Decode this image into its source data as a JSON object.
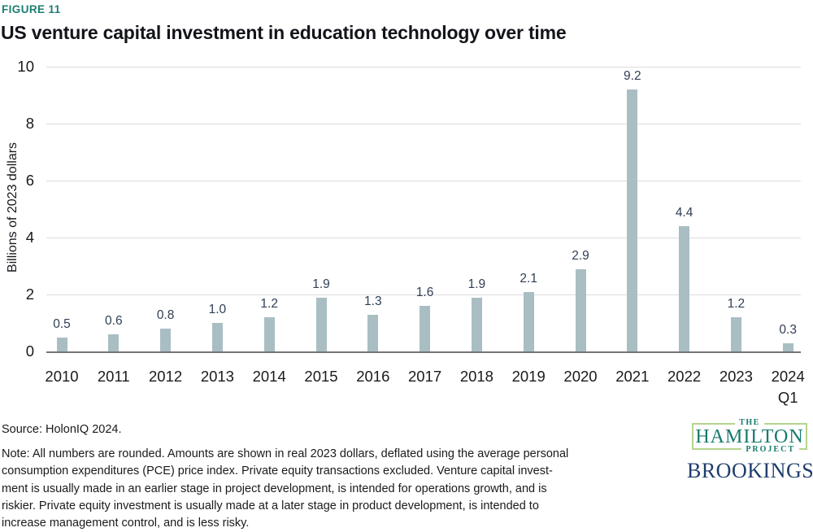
{
  "figure_label": "FIGURE 11",
  "title": "US venture capital investment in education technology over time",
  "chart_data": {
    "type": "bar",
    "categories": [
      "2010",
      "2011",
      "2012",
      "2013",
      "2014",
      "2015",
      "2016",
      "2017",
      "2018",
      "2019",
      "2020",
      "2021",
      "2022",
      "2023",
      "2024 Q1"
    ],
    "values": [
      0.5,
      0.6,
      0.8,
      1.0,
      1.2,
      1.9,
      1.3,
      1.6,
      1.9,
      2.1,
      2.9,
      9.2,
      4.4,
      1.2,
      0.3
    ],
    "title": "US venture capital investment in education technology over time",
    "xlabel": "",
    "ylabel": "Billions of 2023 dollars",
    "yticks": [
      0,
      2,
      4,
      6,
      8,
      10
    ],
    "ylim": [
      0,
      10
    ],
    "grid": true,
    "legend": "none",
    "bar_color": "#a9bec3",
    "value_label_color": "#2f3e55",
    "accent_color": "#1b7e71"
  },
  "footer": {
    "source": "Source: HolonIQ 2024.",
    "note_lines": [
      "Note: All numbers are rounded. Amounts are shown in real 2023 dollars, deflated using the average personal",
      "consumption expenditures (PCE) price index. Private equity transactions excluded. Venture capital invest-",
      "ment is usually made in an earlier stage in project development, is intended for operations growth, and is",
      "riskier. Private equity investment is usually made at a later stage in product development, is intended to",
      "increase management control, and is less risky."
    ]
  },
  "logos": {
    "hamilton": {
      "the": "THE",
      "name": "HAMILTON",
      "project": "PROJECT"
    },
    "brookings": "BROOKINGS"
  }
}
